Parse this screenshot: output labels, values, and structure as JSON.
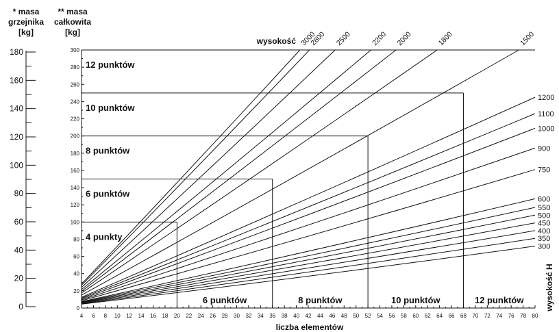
{
  "header": {
    "outer_axis_title": [
      "* masa",
      "grzejnika",
      "[kg]"
    ],
    "inner_axis_title": [
      "** masa",
      "całkowita",
      "[kg]"
    ]
  },
  "chart_data": {
    "type": "line",
    "xlabel": "liczba elementów",
    "x_range": [
      4,
      80
    ],
    "x_ticks": [
      4,
      6,
      8,
      10,
      12,
      14,
      16,
      18,
      20,
      22,
      24,
      26,
      28,
      30,
      32,
      34,
      36,
      38,
      40,
      42,
      44,
      46,
      48,
      50,
      52,
      54,
      56,
      58,
      60,
      62,
      64,
      66,
      68,
      70,
      72,
      74,
      76,
      78,
      80
    ],
    "y_range": [
      0,
      300
    ],
    "y_ticks": [
      0,
      20,
      40,
      60,
      80,
      100,
      120,
      140,
      160,
      180,
      200,
      220,
      240,
      260,
      280,
      300
    ],
    "outer_y_range": [
      0,
      180
    ],
    "outer_y_ticks": [
      0,
      20,
      40,
      60,
      80,
      100,
      120,
      140,
      160,
      180
    ],
    "height_title_top": "wysokość",
    "height_title_right": "wysokość H",
    "series": [
      {
        "name": "3000",
        "label_pos": "top",
        "y_at_4": 28,
        "x_at_300": 40.6
      },
      {
        "name": "2800",
        "label_pos": "top",
        "y_at_4": 26.5,
        "x_at_300": 42.2
      },
      {
        "name": "2500",
        "label_pos": "top",
        "y_at_4": 24,
        "x_at_300": 46.5
      },
      {
        "name": "2200",
        "label_pos": "top",
        "y_at_4": 21.5,
        "x_at_300": 52.5
      },
      {
        "name": "2000",
        "label_pos": "top",
        "y_at_4": 19.5,
        "x_at_300": 56.7
      },
      {
        "name": "1800",
        "label_pos": "top",
        "y_at_4": 17.5,
        "x_at_300": 63.6
      },
      {
        "name": "1500",
        "label_pos": "top",
        "y_at_4": 15,
        "x_at_300": 77.3
      },
      {
        "name": "1200",
        "label_pos": "right",
        "y_at_4": 12.5,
        "y_at_80": 245
      },
      {
        "name": "1100",
        "label_pos": "right",
        "y_at_4": 11.5,
        "y_at_80": 226
      },
      {
        "name": "1000",
        "label_pos": "right",
        "y_at_4": 10.5,
        "y_at_80": 209
      },
      {
        "name": "900",
        "label_pos": "right",
        "y_at_4": 9.5,
        "y_at_80": 186
      },
      {
        "name": "750",
        "label_pos": "right",
        "y_at_4": 8.5,
        "y_at_80": 161
      },
      {
        "name": "600",
        "label_pos": "right",
        "y_at_4": 7.5,
        "y_at_80": 127
      },
      {
        "name": "550",
        "label_pos": "right",
        "y_at_4": 7,
        "y_at_80": 117
      },
      {
        "name": "500",
        "label_pos": "right",
        "y_at_4": 6.5,
        "y_at_80": 108
      },
      {
        "name": "450",
        "label_pos": "right",
        "y_at_4": 6,
        "y_at_80": 99
      },
      {
        "name": "400",
        "label_pos": "right",
        "y_at_4": 5.5,
        "y_at_80": 90
      },
      {
        "name": "350",
        "label_pos": "right",
        "y_at_4": 5,
        "y_at_80": 81
      },
      {
        "name": "300",
        "label_pos": "right",
        "y_at_4": 4.5,
        "y_at_80": 72
      }
    ],
    "zones": [
      {
        "label": "4 punkty",
        "x_max": 20,
        "y_max": 100
      },
      {
        "label": "6 punktów",
        "x_max": 36,
        "y_max": 150
      },
      {
        "label": "8 punktów",
        "x_max": 52,
        "y_max": 200
      },
      {
        "label": "10 punktów",
        "x_max": 68,
        "y_max": 250
      },
      {
        "label": "12 punktów",
        "x_max": 80,
        "y_max": 300
      }
    ],
    "bottom_zone_labels": [
      {
        "label": "6 punktów",
        "x_from": 20,
        "x_to": 36
      },
      {
        "label": "8 punktów",
        "x_from": 36,
        "x_to": 52
      },
      {
        "label": "10 punktów",
        "x_from": 52,
        "x_to": 68
      },
      {
        "label": "12 punktów",
        "x_from": 68,
        "x_to": 80
      }
    ]
  }
}
